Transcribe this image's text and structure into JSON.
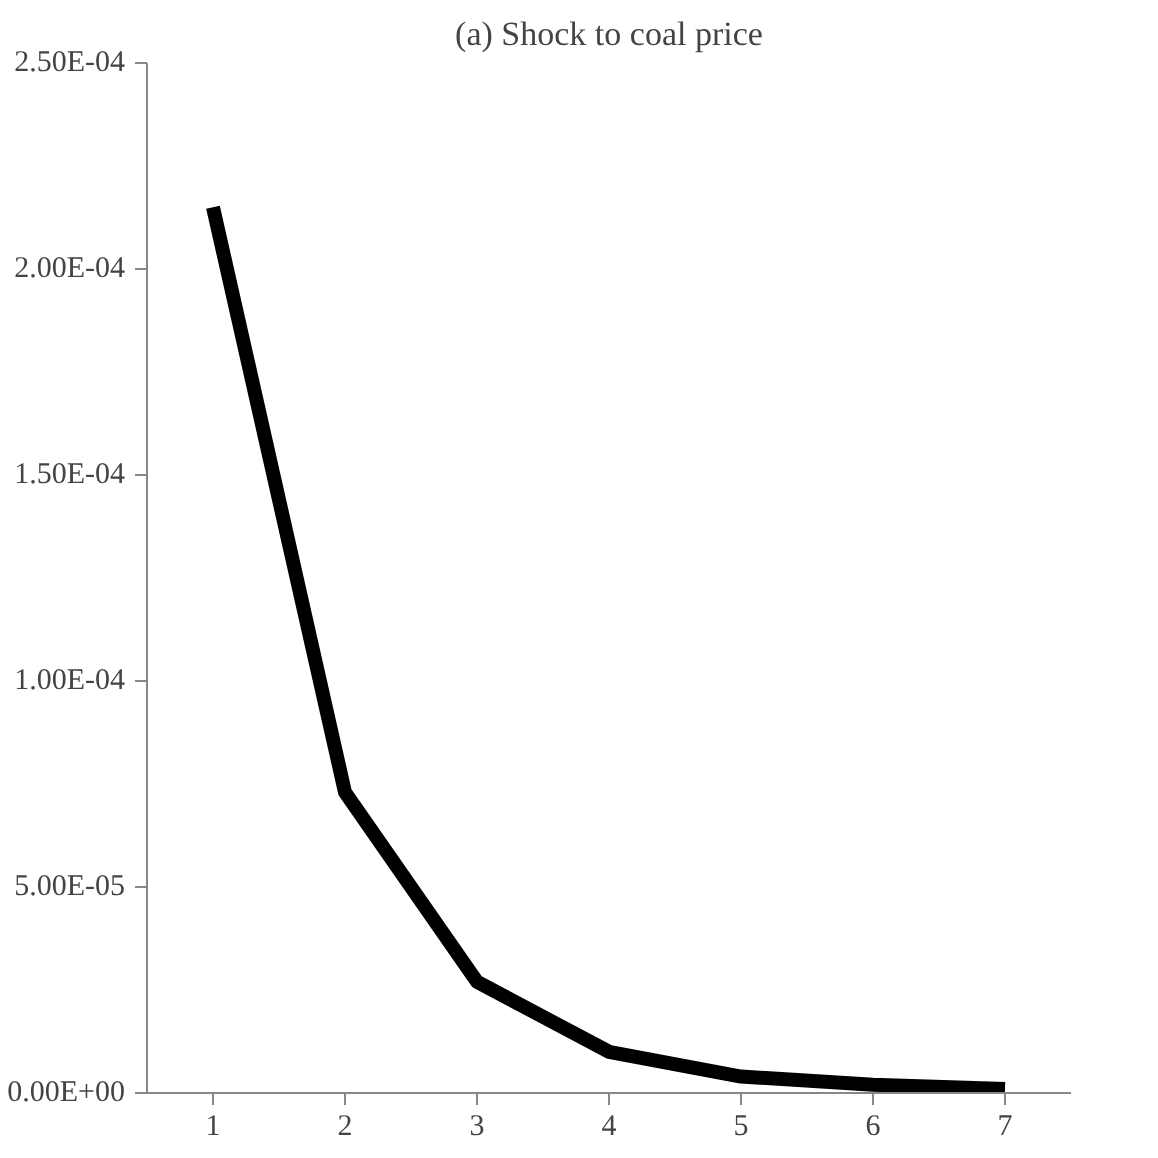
{
  "chart_data": {
    "type": "line",
    "title": "(a) Shock to coal price",
    "categories": [
      "1",
      "2",
      "3",
      "4",
      "5",
      "6",
      "7"
    ],
    "series": [
      {
        "color": "#000000",
        "values": [
          0.000215,
          7.3e-05,
          2.7e-05,
          1e-05,
          4e-06,
          2e-06,
          1e-06
        ]
      }
    ],
    "ylim": [
      0,
      0.00025
    ],
    "yticks": [
      {
        "value": 0,
        "label": "0.00E+00"
      },
      {
        "value": 5e-05,
        "label": "5.00E-05"
      },
      {
        "value": 0.0001,
        "label": "1.00E-04"
      },
      {
        "value": 0.00015,
        "label": "1.50E-04"
      },
      {
        "value": 0.0002,
        "label": "2.00E-04"
      },
      {
        "value": 0.00025,
        "label": "2.50E-04"
      }
    ],
    "grid": false,
    "marker": "none",
    "line_style": "solid"
  }
}
